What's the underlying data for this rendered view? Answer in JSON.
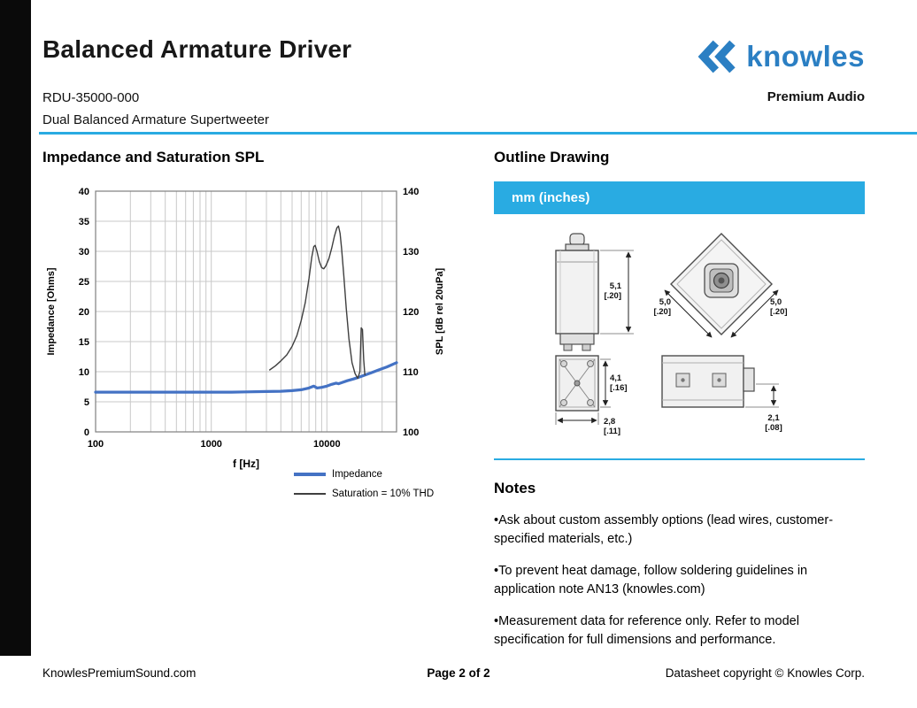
{
  "colors": {
    "accent": "#29abe2",
    "brand": "#2b7fc3",
    "edge_bar": "#0a0a0a"
  },
  "header": {
    "title": "Balanced Armature Driver",
    "model": "RDU-35000-000",
    "subtitle": "Dual Balanced Armature Supertweeter",
    "brand": "knowles",
    "brand_tagline": "Premium Audio",
    "logo_icon": "double-left-chevron"
  },
  "chart_data": {
    "type": "line",
    "title": "Impedance and Saturation SPL",
    "xlabel": "f [Hz]",
    "ylabel_left": "Impedance [Ohms]",
    "ylabel_right": "SPL [dB rel 20uPa]",
    "x_scale": "log",
    "xlim": [
      100,
      40000
    ],
    "x_ticks": [
      100,
      1000,
      10000
    ],
    "ylim_left": [
      0,
      40
    ],
    "yticks_left": [
      0,
      5,
      10,
      15,
      20,
      25,
      30,
      35,
      40
    ],
    "ylim_right": [
      100,
      140
    ],
    "yticks_right": [
      100,
      110,
      120,
      130,
      140
    ],
    "grid": true,
    "legend_position": "bottom",
    "legend": [
      {
        "label": "Impedance",
        "color": "#4472c4",
        "width": 3.2,
        "axis": "left"
      },
      {
        "label": "Saturation = 10% THD",
        "color": "#3f3f3f",
        "width": 1.4,
        "axis": "right"
      }
    ],
    "series": [
      {
        "name": "Impedance",
        "axis": "left",
        "points": [
          [
            100,
            6.6
          ],
          [
            200,
            6.6
          ],
          [
            400,
            6.6
          ],
          [
            700,
            6.6
          ],
          [
            1000,
            6.6
          ],
          [
            1500,
            6.6
          ],
          [
            2000,
            6.65
          ],
          [
            3000,
            6.7
          ],
          [
            4000,
            6.75
          ],
          [
            5000,
            6.85
          ],
          [
            6000,
            7.0
          ],
          [
            7000,
            7.3
          ],
          [
            7700,
            7.6
          ],
          [
            8200,
            7.3
          ],
          [
            9000,
            7.4
          ],
          [
            10000,
            7.6
          ],
          [
            11000,
            7.9
          ],
          [
            12000,
            8.1
          ],
          [
            12600,
            8.0
          ],
          [
            13500,
            8.2
          ],
          [
            15000,
            8.5
          ],
          [
            17000,
            8.8
          ],
          [
            19000,
            9.1
          ],
          [
            21000,
            9.4
          ],
          [
            24000,
            9.8
          ],
          [
            28000,
            10.3
          ],
          [
            33000,
            10.8
          ],
          [
            40000,
            11.5
          ]
        ]
      },
      {
        "name": "Saturation = 10% THD",
        "axis": "right",
        "points": [
          [
            3200,
            110.3
          ],
          [
            3600,
            111.0
          ],
          [
            4000,
            111.8
          ],
          [
            4500,
            112.8
          ],
          [
            5000,
            114.2
          ],
          [
            5500,
            116.0
          ],
          [
            6000,
            118.5
          ],
          [
            6500,
            121.5
          ],
          [
            7000,
            125.5
          ],
          [
            7400,
            129.0
          ],
          [
            7700,
            130.8
          ],
          [
            7900,
            131.0
          ],
          [
            8200,
            130.0
          ],
          [
            8600,
            128.3
          ],
          [
            9000,
            127.3
          ],
          [
            9400,
            127.1
          ],
          [
            9800,
            127.6
          ],
          [
            10400,
            128.8
          ],
          [
            11000,
            130.5
          ],
          [
            11600,
            132.5
          ],
          [
            12200,
            133.9
          ],
          [
            12600,
            134.2
          ],
          [
            13000,
            133.0
          ],
          [
            13400,
            130.5
          ],
          [
            14000,
            126.0
          ],
          [
            14700,
            120.5
          ],
          [
            15500,
            115.5
          ],
          [
            16500,
            111.5
          ],
          [
            17500,
            109.7
          ],
          [
            18500,
            108.9
          ],
          [
            19300,
            110.0
          ],
          [
            19800,
            117.3
          ],
          [
            20300,
            117.0
          ],
          [
            20800,
            112.0
          ],
          [
            21300,
            109.5
          ]
        ]
      }
    ]
  },
  "outline": {
    "title": "Outline Drawing",
    "banner": "mm (inches)",
    "dims": [
      {
        "mm": "5,1",
        "in": "[.20]"
      },
      {
        "mm": "5,0",
        "in": "[.20]"
      },
      {
        "mm": "5,0",
        "in": "[.20]"
      },
      {
        "mm": "4,1",
        "in": "[.16]"
      },
      {
        "mm": "2,8",
        "in": "[.11]"
      },
      {
        "mm": "2,1",
        "in": "[.08]"
      }
    ]
  },
  "notes": {
    "title": "Notes",
    "items": [
      "•Ask about custom assembly options (lead wires, customer-specified materials, etc.)",
      "•To prevent heat damage, follow soldering guidelines in application note AN13 (knowles.com)",
      "•Measurement data for reference only.  Refer to model specification for full dimensions and performance."
    ]
  },
  "footer": {
    "left": "KnowlesPremiumSound.com",
    "center": "Page 2 of 2",
    "right": "Datasheet copyright © Knowles Corp."
  }
}
